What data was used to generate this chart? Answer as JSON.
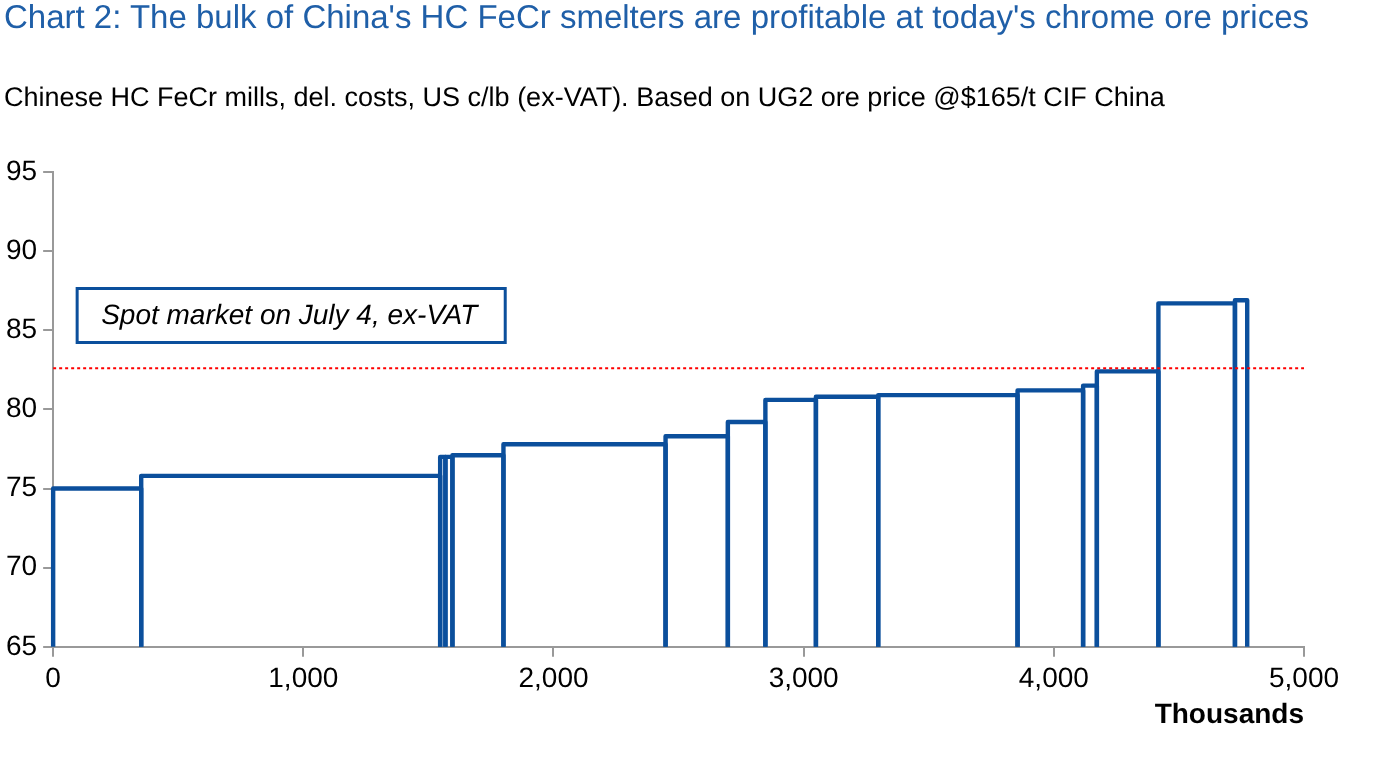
{
  "chart_data": {
    "type": "histogram",
    "title": "Chart 2: The bulk of China's HC FeCr smelters are profitable at today's chrome ore prices",
    "subtitle": "Chinese HC FeCr mills, del. costs, US c/lb (ex-VAT). Based on UG2 ore price @$165/t CIF China",
    "xlabel": "Thousands",
    "bins": [
      0,
      352,
      1547,
      1568,
      1596,
      1800,
      2448,
      2697,
      2847,
      3049,
      3298,
      3855,
      4117,
      4172,
      4418,
      4724,
      4773
    ],
    "values": [
      75.0,
      75.8,
      77.0,
      77.0,
      77.1,
      77.8,
      78.3,
      79.2,
      80.6,
      80.8,
      80.9,
      81.2,
      81.5,
      82.4,
      86.7,
      86.9
    ],
    "color": "#0b4f9c",
    "xlim": [
      0,
      5000
    ],
    "xticks": [
      0,
      {
        "value": 1000,
        "label": "1,000"
      },
      {
        "value": 2000,
        "label": "2,000"
      },
      {
        "value": 3000,
        "label": "3,000"
      },
      {
        "value": 4000,
        "label": "4,000"
      },
      {
        "value": 5000,
        "label": "5,000"
      }
    ],
    "ylim": [
      65,
      95
    ],
    "yticks": [
      65,
      70,
      75,
      80,
      85,
      90,
      95
    ],
    "ref_lines": [
      {
        "axis": "y",
        "value": 82.6,
        "label": "Spot market on July 4, ex-VAT",
        "color": "#ff0000",
        "line_style": "dotted"
      }
    ],
    "grid": false,
    "legend": false
  }
}
